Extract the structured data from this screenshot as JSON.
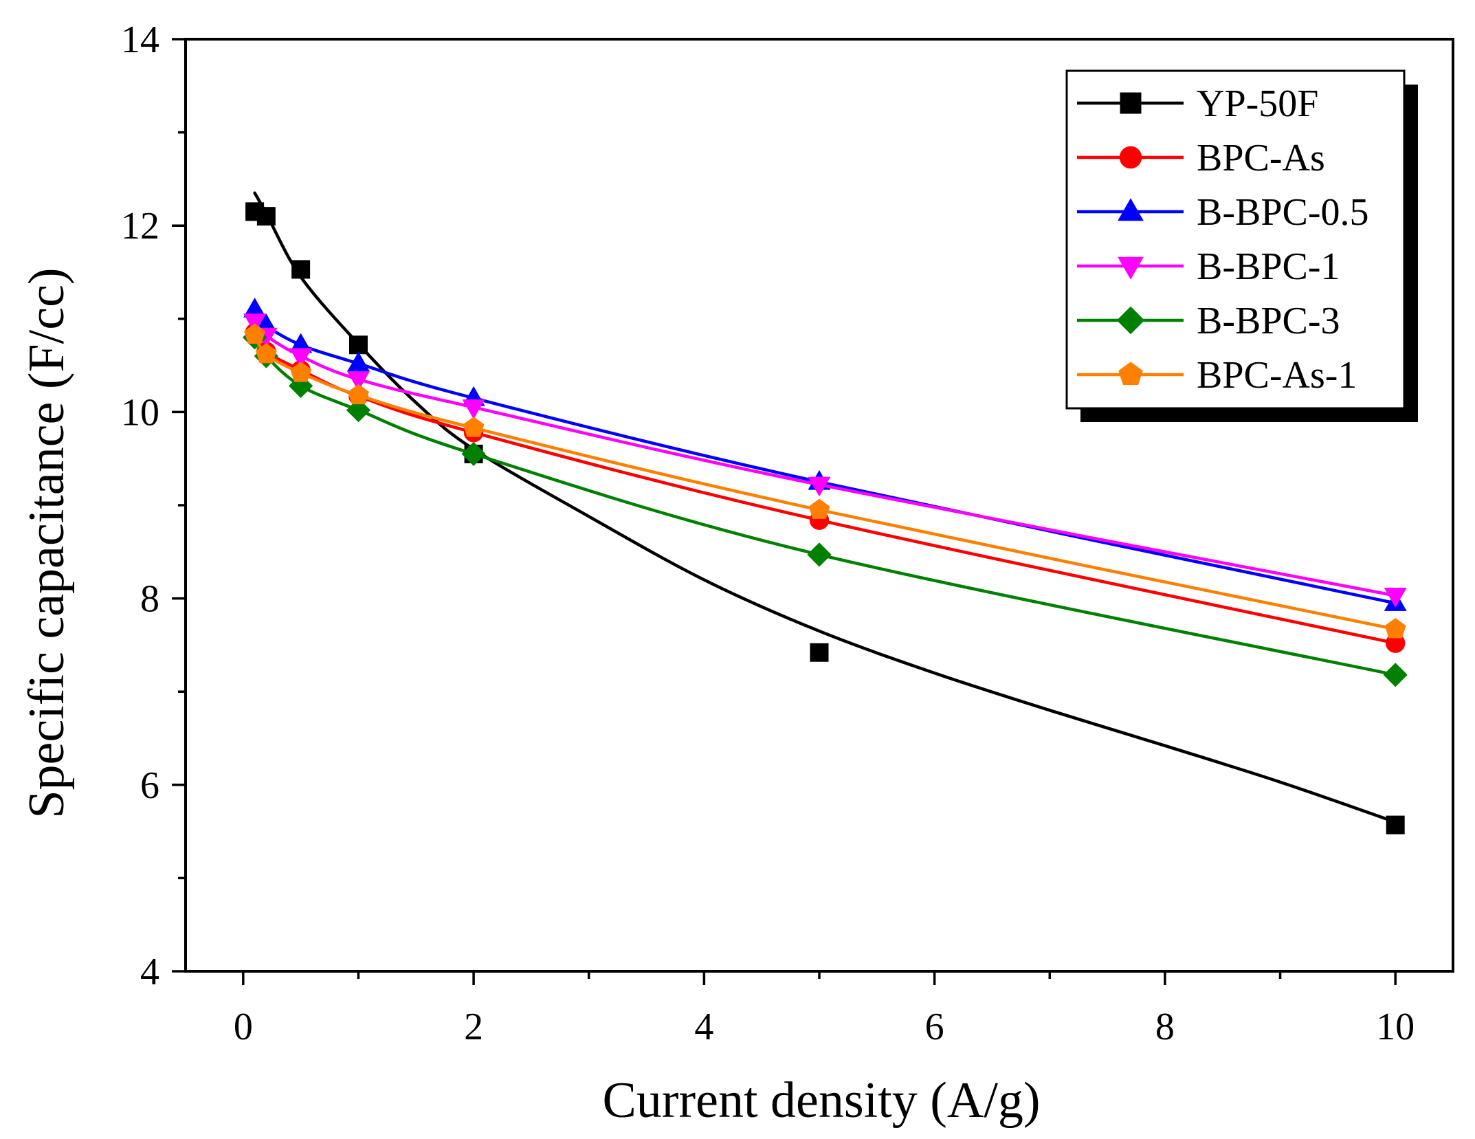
{
  "chart_data": {
    "type": "line",
    "xlabel": "Current density (A/g)",
    "ylabel": "Specific capacitance (F/cc)",
    "xlim": [
      -0.5,
      10.5
    ],
    "ylim": [
      4,
      14
    ],
    "xticks": [
      0,
      2,
      4,
      6,
      8,
      10
    ],
    "yticks": [
      4,
      6,
      8,
      10,
      12,
      14
    ],
    "grid": false,
    "legend_position": "top-right",
    "series": [
      {
        "name": "YP-50F",
        "color": "#000000",
        "marker": "square",
        "x": [
          0.1,
          0.2,
          0.5,
          1,
          2,
          5,
          10
        ],
        "y": [
          12.15,
          12.1,
          11.53,
          10.72,
          9.55,
          7.42,
          5.57
        ],
        "fit": [
          [
            0.1,
            12.35
          ],
          [
            0.2,
            12.13
          ],
          [
            0.5,
            11.45
          ],
          [
            1,
            10.73
          ],
          [
            1.5,
            10.1
          ],
          [
            2,
            9.6
          ],
          [
            3,
            8.88
          ],
          [
            4,
            8.2
          ],
          [
            5,
            7.65
          ],
          [
            6,
            7.2
          ],
          [
            7,
            6.8
          ],
          [
            8,
            6.42
          ],
          [
            9,
            6.03
          ],
          [
            10,
            5.6
          ]
        ]
      },
      {
        "name": "BPC-As",
        "color": "#ff0000",
        "marker": "circle",
        "x": [
          0.1,
          0.2,
          0.5,
          1,
          2,
          5,
          10
        ],
        "y": [
          10.85,
          10.65,
          10.45,
          10.17,
          9.78,
          8.84,
          7.52
        ]
      },
      {
        "name": "B-BPC-0.5",
        "color": "#0000ff",
        "marker": "triangle-up",
        "x": [
          0.1,
          0.2,
          0.5,
          1,
          2,
          5,
          10
        ],
        "y": [
          11.1,
          10.93,
          10.72,
          10.52,
          10.15,
          9.25,
          7.95
        ]
      },
      {
        "name": "B-BPC-1",
        "color": "#ff00ff",
        "marker": "triangle-down",
        "x": [
          0.1,
          0.2,
          0.5,
          1,
          2,
          5,
          10
        ],
        "y": [
          10.97,
          10.82,
          10.6,
          10.35,
          10.05,
          9.22,
          8.03
        ]
      },
      {
        "name": "B-BPC-3",
        "color": "#008000",
        "marker": "diamond",
        "x": [
          0.1,
          0.2,
          0.5,
          1,
          2,
          5,
          10
        ],
        "y": [
          10.8,
          10.6,
          10.28,
          10.02,
          9.55,
          8.47,
          7.18
        ]
      },
      {
        "name": "BPC-As-1",
        "color": "#ff8000",
        "marker": "pentagon",
        "x": [
          0.1,
          0.2,
          0.5,
          1,
          2,
          5,
          10
        ],
        "y": [
          10.83,
          10.62,
          10.42,
          10.18,
          9.83,
          8.95,
          7.67
        ]
      }
    ]
  }
}
